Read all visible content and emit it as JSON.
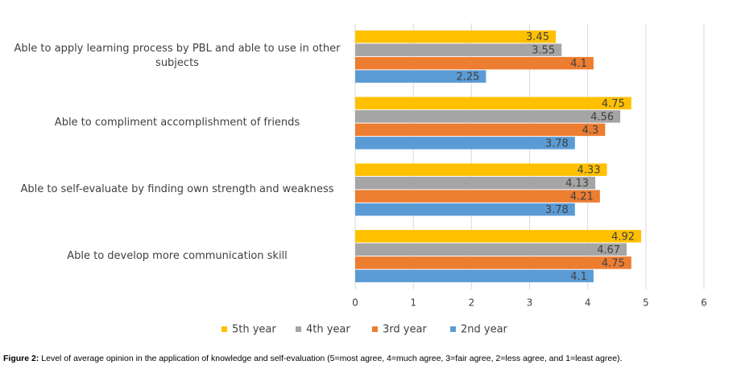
{
  "chart_data": {
    "type": "bar",
    "orientation": "horizontal",
    "categories": [
      "Able to apply learning process by PBL and able to use in other subjects",
      "Able to compliment accomplishment of friends",
      "Able to self-evaluate  by finding own strength and weakness",
      "Able to develop more communication skill"
    ],
    "series": [
      {
        "name": "5th year",
        "color": "#ffc000",
        "values": [
          3.45,
          4.75,
          4.33,
          4.92
        ]
      },
      {
        "name": "4th year",
        "color": "#a5a5a5",
        "values": [
          3.55,
          4.56,
          4.13,
          4.67
        ]
      },
      {
        "name": "3rd year",
        "color": "#ed7d31",
        "values": [
          4.1,
          4.3,
          4.21,
          4.75
        ]
      },
      {
        "name": "2nd year",
        "color": "#5b9bd5",
        "values": [
          2.25,
          3.78,
          3.78,
          4.1
        ]
      }
    ],
    "xlim": [
      0,
      6
    ],
    "xticks": [
      0,
      1,
      2,
      3,
      4,
      5,
      6
    ],
    "grid": true,
    "legend": "bottom",
    "caption_label": "Figure 2:",
    "caption": "Level of average opinion in the application of knowledge and self-evaluation (5=most agree, 4=much agree, 3=fair agree, 2=less agree, and 1=least agree)."
  }
}
